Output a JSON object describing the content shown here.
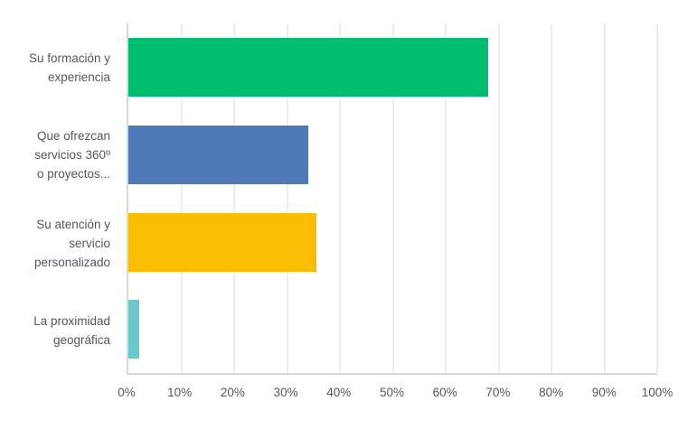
{
  "chart_data": {
    "type": "bar",
    "orientation": "horizontal",
    "title": "",
    "xlabel": "",
    "ylabel": "",
    "xlim": [
      0,
      100
    ],
    "grid": "vertical",
    "legend": "none",
    "categories": [
      "Su formación y\nexperiencia",
      "Que ofrezcan\nservicios 360º\no proyectos...",
      "Su atención y\nservicio\npersonalizado",
      "La proximidad\ngeográfica"
    ],
    "category_keys": [
      "formacion-experiencia",
      "servicios-360",
      "atencion-servicio",
      "proximidad-geografica"
    ],
    "values": [
      68,
      34,
      35.5,
      2
    ],
    "bar_colors": [
      "#00BD6F",
      "#4E79B6",
      "#F8BD00",
      "#6BC7CE"
    ],
    "x_ticks": [
      "0%",
      "10%",
      "20%",
      "30%",
      "40%",
      "50%",
      "60%",
      "70%",
      "80%",
      "90%",
      "100%"
    ],
    "x_tick_values": [
      0,
      10,
      20,
      30,
      40,
      50,
      60,
      70,
      80,
      90,
      100
    ],
    "colors": {
      "gridline": "#ededed",
      "axis": "#d9d9d9",
      "text": "#54575f",
      "background": "#ffffff"
    }
  }
}
